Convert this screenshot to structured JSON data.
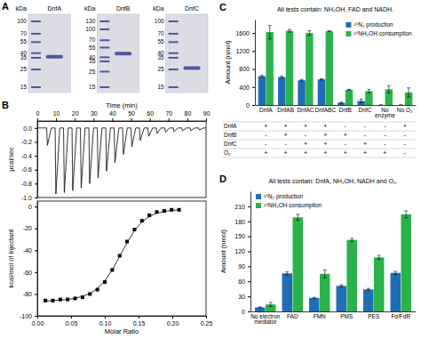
{
  "gel_panel": {
    "panel": "A",
    "gels": [
      {
        "title": "DnfA",
        "unit": "kDa",
        "markers": [
          100,
          70,
          55,
          40,
          35,
          25,
          15
        ],
        "band_kda": 36,
        "color": "#4f56a6"
      },
      {
        "title": "DnfB",
        "unit": "kDa",
        "markers": [
          130,
          100,
          70,
          55,
          40,
          35,
          25,
          15
        ],
        "band_kda": 45,
        "color": "#4f56a6"
      },
      {
        "title": "DnfC",
        "unit": "kDa",
        "markers": [
          100,
          70,
          55,
          40,
          35,
          25,
          15
        ],
        "band_kda": 26,
        "color": "#4f56a6"
      }
    ]
  },
  "chart_data": [
    {
      "panel": "B",
      "type": "line",
      "xlabel": "Time (min)",
      "ylabel": "µcal/sec",
      "x": [
        0,
        5,
        5.4,
        7.5,
        9.5,
        9.9,
        12,
        14,
        14.4,
        16.5,
        18.5,
        18.9,
        21,
        23,
        23.4,
        25.5,
        27.5,
        27.9,
        30,
        32,
        32.4,
        34.5,
        36.5,
        36.9,
        39,
        41,
        41.4,
        43.5,
        45.5,
        45.9,
        48,
        50,
        50.4,
        52.5,
        54.5,
        54.9,
        57,
        59,
        59.4,
        61.5,
        63.5,
        63.9,
        66,
        68,
        68.4,
        70.5,
        72.5,
        72.9,
        75,
        77,
        77.4,
        79.5,
        81.5,
        81.9,
        84,
        86,
        86.4,
        88.5,
        90
      ],
      "series": [
        {
          "color": "#000000",
          "values": [
            0,
            0,
            -0.25,
            0,
            0,
            -0.95,
            0,
            0,
            -0.93,
            0,
            0,
            -0.9,
            0,
            0,
            -0.86,
            0,
            0,
            -0.8,
            0,
            0,
            -0.72,
            0,
            0,
            -0.62,
            0,
            0,
            -0.5,
            0,
            0,
            -0.38,
            0,
            0,
            -0.27,
            0,
            0,
            -0.18,
            0,
            0,
            -0.12,
            0,
            0,
            -0.08,
            0,
            0,
            -0.06,
            0,
            0,
            -0.05,
            0,
            0,
            -0.04,
            0,
            0,
            -0.04,
            0,
            0,
            -0.03,
            0,
            0
          ]
        }
      ],
      "xlim": [
        0,
        90
      ],
      "xticks": [
        0,
        10,
        20,
        30,
        40,
        50,
        60,
        70,
        80,
        90
      ],
      "ylim": [
        -1.0,
        0.1
      ],
      "yticks": [
        {
          "value": -1,
          "label": "-1.0"
        },
        {
          "value": -0.8,
          "label": "-0.8"
        },
        {
          "value": -0.6,
          "label": "-0.6"
        },
        {
          "value": -0.4,
          "label": "-0.4"
        },
        {
          "value": -0.2,
          "label": "-0.2"
        },
        {
          "value": 0,
          "label": "0.0"
        }
      ]
    },
    {
      "type": "scatter",
      "xlabel": "Molar Ratio",
      "ylabel": "kcal/mol of injectant",
      "x": [
        0.012,
        0.023,
        0.034,
        0.045,
        0.056,
        0.067,
        0.078,
        0.089,
        0.1,
        0.111,
        0.122,
        0.133,
        0.144,
        0.155,
        0.166,
        0.177,
        0.188,
        0.199,
        0.21
      ],
      "series": [
        {
          "type": "scatter",
          "marker": "square",
          "color": "#000000",
          "values": [
            -86,
            -86,
            -85,
            -85,
            -84,
            -83,
            -80,
            -76,
            -69,
            -58,
            -45,
            -32,
            -21,
            -13,
            -8,
            -5,
            -4,
            -3,
            -3
          ]
        },
        {
          "type": "line",
          "color": "#000000",
          "values": [
            -86.5,
            -86,
            -85.5,
            -85,
            -84,
            -82,
            -79.5,
            -75,
            -68,
            -58,
            -45.5,
            -33,
            -22,
            -14,
            -9,
            -6,
            -4.5,
            -3.5,
            -3
          ]
        }
      ],
      "xlim": [
        0,
        0.25
      ],
      "xticks": [
        {
          "value": 0,
          "label": "0.00"
        },
        {
          "value": 0.05,
          "label": "0.05"
        },
        {
          "value": 0.1,
          "label": "0.10"
        },
        {
          "value": 0.15,
          "label": "0.15"
        },
        {
          "value": 0.2,
          "label": "0.20"
        },
        {
          "value": 0.25,
          "label": "0.25"
        }
      ],
      "ylim": [
        -100,
        5
      ],
      "yticks": [
        -100,
        -80,
        -60,
        -40,
        -20,
        0
      ]
    },
    {
      "panel": "C",
      "type": "bar",
      "title": "All tests contain: NH₂OH, FAD and NADH.",
      "ylabel": "Amount (nmol)",
      "categories": [
        "DnfA",
        "DnfAB",
        "DnfAC",
        "DnfABC",
        "DnfB",
        "DnfC",
        "No enzyme",
        "No O₂"
      ],
      "series": [
        {
          "name": "¹⁵N₂ production",
          "color": "#1f6db5",
          "values": [
            640,
            620,
            550,
            570,
            50,
            90,
            0,
            0
          ],
          "errors": [
            20,
            20,
            20,
            15,
            10,
            40,
            0,
            0
          ]
        },
        {
          "name": "¹⁵NH₂OH consumption",
          "color": "#2bb24c",
          "values": [
            1620,
            1650,
            1600,
            1640,
            340,
            310,
            350,
            280
          ],
          "errors": [
            150,
            30,
            50,
            10,
            10,
            40,
            80,
            100
          ]
        }
      ],
      "ylim": [
        0,
        1900
      ],
      "yticks": [
        0,
        400,
        800,
        1200,
        1600
      ],
      "legend": "upper right",
      "table": {
        "rows": [
          {
            "label": "DnfA",
            "cells": [
              "+",
              "+",
              "+",
              "+",
              "-",
              "-",
              "-",
              "+"
            ]
          },
          {
            "label": "DnfB",
            "cells": [
              "-",
              "+",
              "-",
              "+",
              "+",
              "-",
              "-",
              "-"
            ]
          },
          {
            "label": "DnfC",
            "cells": [
              "-",
              "-",
              "+",
              "+",
              "-",
              "+",
              "-",
              "-"
            ]
          },
          {
            "label": "O₂",
            "cells": [
              "+",
              "+",
              "+",
              "+",
              "+",
              "+",
              "+",
              "-"
            ]
          }
        ]
      }
    },
    {
      "panel": "D",
      "type": "bar",
      "title": "All tests contain: DnfA, NH₂OH, NADH and O₂.",
      "ylabel": "Amount (nmol)",
      "categories": [
        "No electron mediator",
        "FAD",
        "FMN",
        "PMS",
        "PES",
        "Fd/FdR"
      ],
      "series": [
        {
          "name": "¹⁵N₂ production",
          "color": "#1f6db5",
          "values": [
            8,
            76,
            27,
            51,
            44,
            77
          ],
          "errors": [
            1,
            3,
            1,
            2,
            2,
            3
          ]
        },
        {
          "name": "¹⁵NH₂OH consumption",
          "color": "#2bb24c",
          "values": [
            14,
            188,
            75,
            143,
            108,
            194
          ],
          "errors": [
            4,
            6,
            8,
            3,
            4,
            7
          ]
        }
      ],
      "ylim": [
        0,
        240
      ],
      "yticks": [
        0,
        30,
        60,
        90,
        120,
        150,
        180,
        210
      ],
      "legend": "upper left"
    }
  ]
}
